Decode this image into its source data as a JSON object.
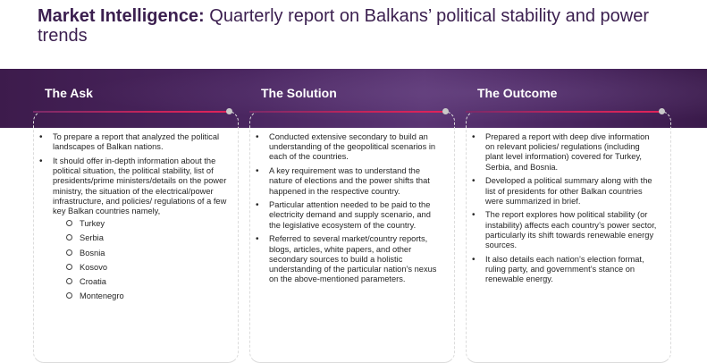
{
  "title": {
    "bold": "Market Intelligence:",
    "rest": " Quarterly report on Balkans’ political stability and power trends"
  },
  "columns": [
    {
      "heading": "The Ask",
      "items": [
        "To prepare a report that analyzed the political landscapes of Balkan nations.",
        "It should offer in-depth information about the political situation, the political stability, list of presidents/prime ministers/details on the power ministry, the situation of the electrical/power infrastructure, and policies/ regulations of a few key Balkan countries namely,"
      ],
      "sub_items": [
        "Turkey",
        "Serbia",
        "Bosnia",
        "Kosovo",
        "Croatia",
        "Montenegro"
      ]
    },
    {
      "heading": "The Solution",
      "items": [
        "Conducted extensive secondary to build an understanding of the geopolitical scenarios in each of the countries.",
        "A key requirement was to understand the nature of elections and the power shifts that happened in the respective country.",
        "Particular attention needed to be paid to the electricity demand and supply scenario, and the legislative ecosystem of the country.",
        "Referred to several market/country reports, blogs, articles, white papers, and other secondary sources to build a holistic understanding of the particular nation’s nexus on the above-mentioned parameters."
      ]
    },
    {
      "heading": "The Outcome",
      "items": [
        "Prepared a report with deep dive information on relevant policies/ regulations (including plant level information) covered for Turkey, Serbia, and Bosnia.",
        "Developed a political summary along with the list of presidents for other Balkan countries were summarized in brief.",
        "The report explores how political stability (or instability) affects each country’s power sector, particularly its shift towards renewable energy sources.",
        "It also details each nation’s election format, ruling party, and government’s stance on renewable energy."
      ]
    }
  ]
}
